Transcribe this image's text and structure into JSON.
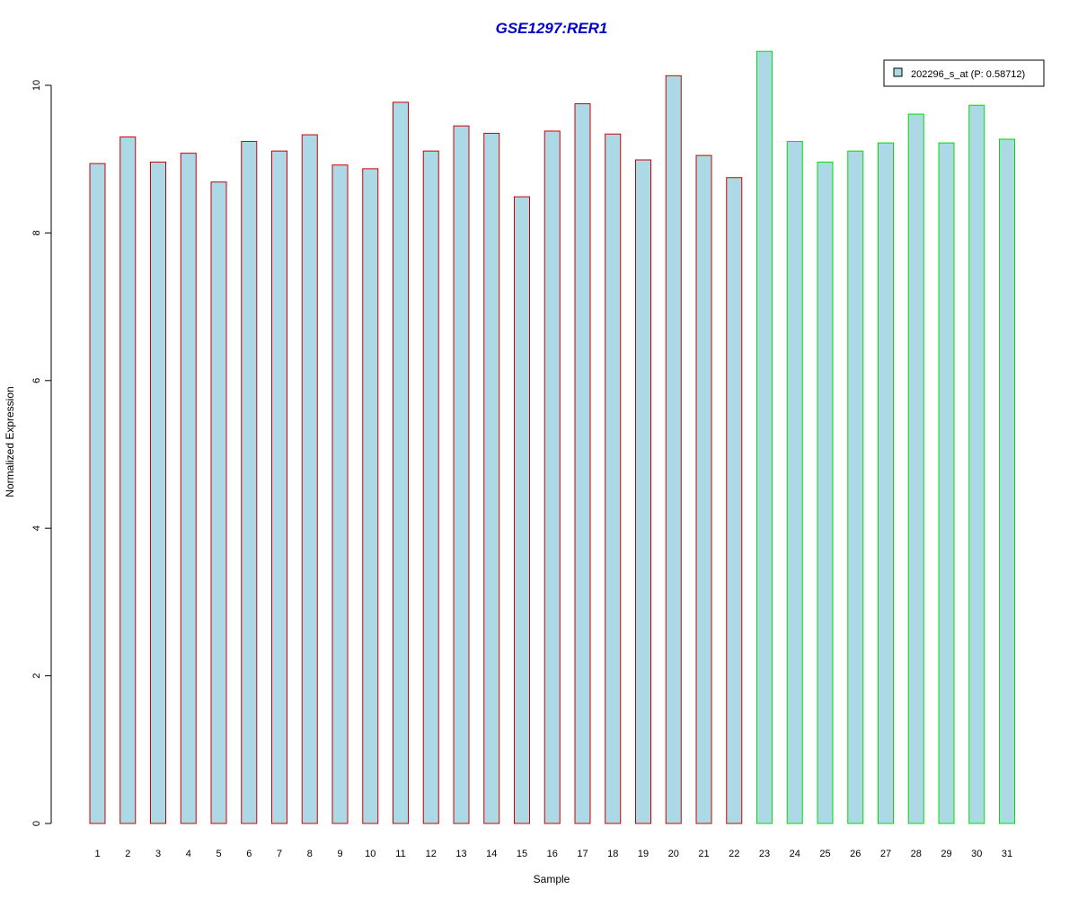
{
  "chart_data": {
    "type": "bar",
    "title": "GSE1297:RER1",
    "xlabel": "Sample",
    "ylabel": "Normalized Expression",
    "ylim": [
      0,
      10.5
    ],
    "yticks": [
      0,
      2,
      4,
      6,
      8,
      10
    ],
    "grid": false,
    "legend": {
      "placement": "top-right",
      "entries": [
        "202296_s_at (P: 0.58712)"
      ]
    },
    "categories": [
      "1",
      "2",
      "3",
      "4",
      "5",
      "6",
      "7",
      "8",
      "9",
      "10",
      "11",
      "12",
      "13",
      "14",
      "15",
      "16",
      "17",
      "18",
      "19",
      "20",
      "21",
      "22",
      "23",
      "24",
      "25",
      "26",
      "27",
      "28",
      "29",
      "30",
      "31"
    ],
    "series": [
      {
        "values": [
          8.94,
          9.3,
          8.96,
          9.08,
          8.69,
          9.24,
          9.11,
          9.33,
          8.92,
          8.87,
          9.77,
          9.11,
          9.45,
          9.35,
          8.49,
          9.38,
          9.75,
          9.34,
          8.99,
          10.13,
          9.05,
          8.75,
          10.46,
          9.24,
          8.96,
          9.11,
          9.22,
          9.61,
          9.22,
          9.73,
          9.27
        ],
        "group": [
          "a",
          "a",
          "a",
          "a",
          "a",
          "a",
          "a",
          "a",
          "a",
          "a",
          "a",
          "a",
          "a",
          "a",
          "a",
          "a",
          "a",
          "a",
          "a",
          "a",
          "a",
          "a",
          "b",
          "b",
          "b",
          "b",
          "b",
          "b",
          "b",
          "b",
          "b"
        ]
      }
    ],
    "colors": {
      "title": "#0000cc",
      "bar_fill": "#add8e6",
      "group_a_border": "#cc0000",
      "group_b_border": "#00dd00",
      "axis": "#000000"
    }
  }
}
